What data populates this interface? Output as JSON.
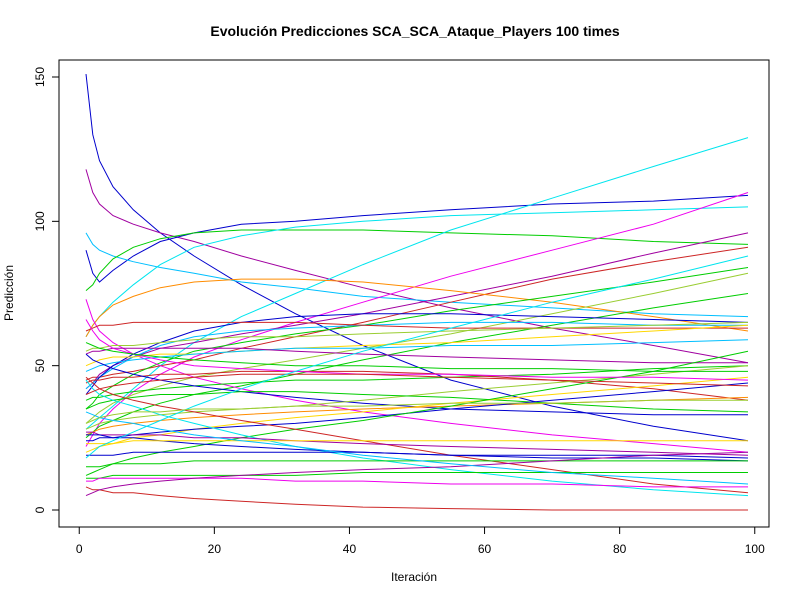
{
  "chart_data": {
    "type": "line",
    "title": "Evolución Predicciones SCA_SCA_Ataque_Players 100 times",
    "xlabel": "Iteración",
    "ylabel": "Predicción",
    "xlim": [
      1,
      99
    ],
    "ylim": [
      -5,
      155
    ],
    "xticks": [
      0,
      20,
      40,
      60,
      80,
      100
    ],
    "yticks": [
      0,
      50,
      100,
      150
    ],
    "grid": false,
    "legend": "none",
    "x_samples": [
      1,
      2,
      3,
      5,
      8,
      12,
      17,
      24,
      32,
      42,
      55,
      70,
      85,
      99
    ],
    "series": [
      {
        "color": "#0000cd",
        "values": [
          151,
          130,
          121,
          112,
          104,
          96,
          88,
          78,
          68,
          57,
          45,
          36,
          29,
          24
        ]
      },
      {
        "color": "#a000a0",
        "values": [
          118,
          110,
          106,
          102,
          99,
          96,
          93,
          88,
          83,
          77,
          70,
          63,
          57,
          51
        ]
      },
      {
        "color": "#0000cd",
        "values": [
          90,
          82,
          79,
          83,
          88,
          93,
          96,
          99,
          100,
          102,
          104,
          106,
          107,
          109
        ]
      },
      {
        "color": "#00bfff",
        "values": [
          96,
          92,
          90,
          88,
          86,
          84,
          82,
          79,
          77,
          74,
          72,
          70,
          68,
          67
        ]
      },
      {
        "color": "#00cd00",
        "values": [
          76,
          78,
          82,
          87,
          91,
          94,
          96,
          97,
          97,
          97,
          96,
          95,
          93,
          92
        ]
      },
      {
        "color": "#00e5ee",
        "values": [
          60,
          64,
          67,
          72,
          78,
          85,
          91,
          95,
          98,
          100,
          102,
          103,
          104,
          105
        ]
      },
      {
        "color": "#00e5ee",
        "values": [
          28,
          30,
          32,
          36,
          42,
          50,
          58,
          67,
          75,
          85,
          97,
          108,
          119,
          129
        ]
      },
      {
        "color": "#ee00ee",
        "values": [
          22,
          26,
          30,
          35,
          41,
          47,
          53,
          59,
          65,
          72,
          81,
          90,
          99,
          110
        ]
      },
      {
        "color": "#cd2626",
        "values": [
          45,
          46,
          46,
          47,
          48,
          50,
          52,
          56,
          60,
          65,
          72,
          80,
          86,
          91
        ]
      },
      {
        "color": "#a000a0",
        "values": [
          42,
          44,
          47,
          50,
          53,
          56,
          58,
          61,
          64,
          68,
          74,
          81,
          89,
          96
        ]
      },
      {
        "color": "#ff8c00",
        "values": [
          60,
          64,
          67,
          71,
          74,
          77,
          79,
          80,
          80,
          79,
          76,
          72,
          67,
          62
        ]
      },
      {
        "color": "#00cd00",
        "values": [
          35,
          37,
          40,
          43,
          47,
          51,
          55,
          58,
          61,
          64,
          69,
          74,
          79,
          84
        ]
      },
      {
        "color": "#9acd32",
        "values": [
          30,
          32,
          34,
          37,
          40,
          43,
          46,
          49,
          52,
          56,
          61,
          68,
          75,
          82
        ]
      },
      {
        "color": "#00cd00",
        "values": [
          25,
          27,
          29,
          31,
          34,
          37,
          40,
          43,
          47,
          52,
          58,
          64,
          70,
          75
        ]
      },
      {
        "color": "#ee00ee",
        "values": [
          73,
          66,
          62,
          58,
          54,
          50,
          46,
          42,
          38,
          34,
          30,
          26,
          23,
          20
        ]
      },
      {
        "color": "#00bfff",
        "values": [
          42,
          44,
          46,
          49,
          53,
          57,
          60,
          62,
          63,
          64,
          65,
          65,
          64,
          64
        ]
      },
      {
        "color": "#0000cd",
        "values": [
          40,
          43,
          46,
          50,
          54,
          58,
          62,
          65,
          67,
          68,
          68,
          67,
          66,
          65
        ]
      },
      {
        "color": "#cd2626",
        "values": [
          62,
          63,
          64,
          64,
          65,
          65,
          65,
          65,
          65,
          64,
          63,
          63,
          63,
          63
        ]
      },
      {
        "color": "#ffd700",
        "values": [
          50,
          51,
          52,
          53,
          53,
          54,
          54,
          55,
          56,
          57,
          58,
          60,
          62,
          64
        ]
      },
      {
        "color": "#9acd32",
        "values": [
          55,
          56,
          56,
          57,
          57,
          58,
          59,
          60,
          60,
          61,
          62,
          63,
          64,
          65
        ]
      },
      {
        "color": "#00bfff",
        "values": [
          48,
          49,
          50,
          51,
          52,
          53,
          54,
          55,
          56,
          56,
          57,
          57,
          58,
          59
        ]
      },
      {
        "color": "#00cd00",
        "values": [
          38,
          39,
          39,
          40,
          41,
          42,
          43,
          44,
          45,
          45,
          46,
          47,
          49,
          50
        ]
      },
      {
        "color": "#cd2626",
        "values": [
          44,
          45,
          45,
          46,
          46,
          47,
          47,
          48,
          48,
          48,
          47,
          45,
          42,
          38
        ]
      },
      {
        "color": "#a000a0",
        "values": [
          54,
          55,
          55,
          56,
          56,
          56,
          56,
          56,
          55,
          54,
          53,
          52,
          51,
          51
        ]
      },
      {
        "color": "#0000cd",
        "values": [
          54,
          52,
          51,
          49,
          47,
          45,
          43,
          41,
          39,
          37,
          35,
          34,
          33,
          33
        ]
      },
      {
        "color": "#9acd32",
        "values": [
          28,
          29,
          30,
          31,
          32,
          33,
          34,
          35,
          36,
          38,
          41,
          44,
          47,
          50
        ]
      },
      {
        "color": "#00cd00",
        "values": [
          35,
          36,
          37,
          38,
          39,
          40,
          40,
          41,
          41,
          40,
          39,
          37,
          35,
          34
        ]
      },
      {
        "color": "#ff8c00",
        "values": [
          26,
          27,
          28,
          29,
          30,
          31,
          32,
          33,
          34,
          35,
          36,
          37,
          38,
          39
        ]
      },
      {
        "color": "#ffd700",
        "values": [
          20,
          21,
          22,
          23,
          25,
          26,
          28,
          30,
          32,
          34,
          37,
          40,
          43,
          46
        ]
      },
      {
        "color": "#0000cd",
        "values": [
          24,
          24,
          25,
          25,
          26,
          27,
          28,
          29,
          30,
          32,
          35,
          38,
          41,
          44
        ]
      },
      {
        "color": "#00cd00",
        "values": [
          12,
          13,
          14,
          16,
          18,
          20,
          22,
          25,
          28,
          31,
          36,
          42,
          48,
          55
        ]
      },
      {
        "color": "#00e5ee",
        "values": [
          45,
          42,
          40,
          38,
          36,
          33,
          30,
          26,
          22,
          18,
          14,
          10,
          7,
          5
        ]
      },
      {
        "color": "#cd2626",
        "values": [
          46,
          44,
          42,
          40,
          38,
          36,
          34,
          31,
          28,
          24,
          19,
          14,
          9,
          6
        ]
      },
      {
        "color": "#a000a0",
        "values": [
          27,
          27,
          26,
          26,
          26,
          26,
          25,
          25,
          24,
          23,
          22,
          21,
          20,
          19
        ]
      },
      {
        "color": "#0000cd",
        "values": [
          26,
          26,
          26,
          25,
          25,
          24,
          23,
          22,
          21,
          20,
          19,
          18,
          18,
          17
        ]
      },
      {
        "color": "#ffd700",
        "values": [
          23,
          23,
          23,
          23,
          24,
          24,
          24,
          24,
          24,
          24,
          24,
          24,
          24,
          24
        ]
      },
      {
        "color": "#00cd00",
        "values": [
          15,
          15,
          15,
          16,
          16,
          16,
          17,
          17,
          17,
          17,
          17,
          17,
          17,
          17
        ]
      },
      {
        "color": "#0000cd",
        "values": [
          19,
          19,
          19,
          19,
          20,
          20,
          20,
          20,
          20,
          20,
          19,
          19,
          19,
          18
        ]
      },
      {
        "color": "#00cd00",
        "values": [
          11,
          11,
          11,
          12,
          12,
          12,
          12,
          12,
          12,
          13,
          13,
          13,
          13,
          13
        ]
      },
      {
        "color": "#ee00ee",
        "values": [
          10,
          10,
          11,
          11,
          11,
          11,
          11,
          11,
          10,
          10,
          9,
          9,
          8,
          8
        ]
      },
      {
        "color": "#cd2626",
        "values": [
          8,
          7,
          7,
          6,
          6,
          5,
          4,
          3,
          2,
          1,
          0.5,
          0,
          0,
          0
        ]
      },
      {
        "color": "#a000a0",
        "values": [
          5,
          6,
          7,
          8,
          9,
          10,
          11,
          12,
          13,
          14,
          15,
          17,
          19,
          20
        ]
      },
      {
        "color": "#00bfff",
        "values": [
          34,
          33,
          32,
          31,
          30,
          28,
          26,
          24,
          22,
          19,
          16,
          13,
          11,
          9
        ]
      },
      {
        "color": "#ee00ee",
        "values": [
          66,
          62,
          59,
          56,
          54,
          52,
          50,
          49,
          48,
          47,
          47,
          46,
          46,
          45
        ]
      },
      {
        "color": "#00cd00",
        "values": [
          58,
          57,
          56,
          55,
          54,
          53,
          52,
          51,
          50,
          50,
          49,
          49,
          48,
          48
        ]
      },
      {
        "color": "#cd2626",
        "values": [
          40,
          41,
          42,
          43,
          44,
          45,
          46,
          47,
          47,
          47,
          46,
          45,
          44,
          43
        ]
      },
      {
        "color": "#00e5ee",
        "values": [
          18,
          20,
          22,
          24,
          27,
          31,
          36,
          42,
          48,
          55,
          63,
          72,
          80,
          88
        ]
      },
      {
        "color": "#9acd32",
        "values": [
          30,
          31,
          32,
          33,
          34,
          34,
          35,
          35,
          36,
          36,
          37,
          37,
          38,
          38
        ]
      }
    ]
  }
}
